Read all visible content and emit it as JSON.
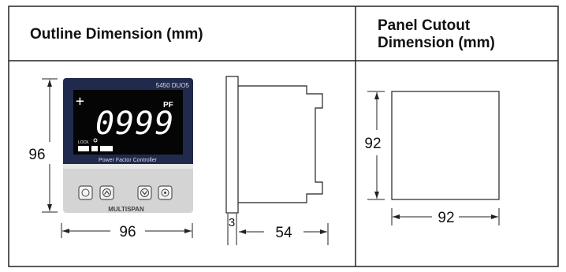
{
  "headers": {
    "outline": "Outline Dimension (mm)",
    "cutout_line1": "Panel Cutout",
    "cutout_line2": "Dimension (mm)"
  },
  "outline": {
    "front_height": "96",
    "front_width": "96",
    "side_bezel": "3",
    "side_depth": "54"
  },
  "cutout": {
    "height": "92",
    "width": "92"
  },
  "device": {
    "model": "5450 DUO5",
    "display_value": "0999",
    "unit": "PF",
    "plus_sign": "+",
    "indicator_label": "LOCK",
    "caption": "Power Factor Controller",
    "brand": "MULTISPAN"
  },
  "colors": {
    "border": "#222222",
    "header_rule": "#222222",
    "bezel": "#1f2a4d",
    "display_bg": "#050505",
    "display_text": "#ffffff",
    "keypad_bg": "#c9c9c9"
  }
}
